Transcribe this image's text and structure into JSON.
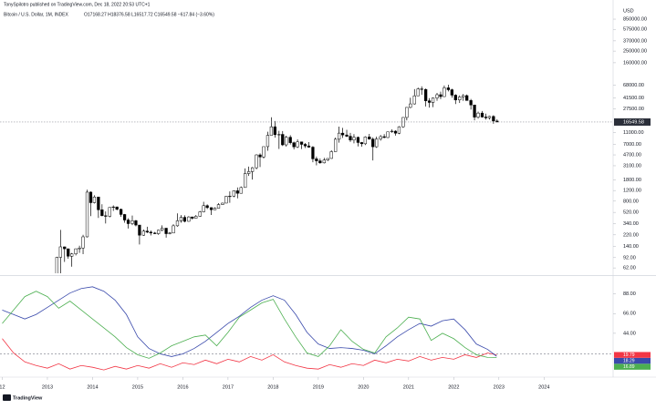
{
  "chart_data": [
    {
      "type": "candlestick",
      "source": "TonySpilotro published on TradingView.com, Dec 18, 2022 20:53 UTC+1",
      "title": "Bitcoin / U.S. Dollar, 1M, INDEX",
      "subtitle": "O17168.27 H18376.58 L16517.72 C16549.58 −617.84 (−3.60%)",
      "currency": "USD",
      "log_scale": true,
      "up_color": "#ffffff",
      "down_color": "#000000",
      "last_price_color": "#2a2e39",
      "xlim": [
        2011.95,
        2025.53
      ],
      "ylim": [
        50.5,
        1086000
      ],
      "yticks": [
        {
          "value": 850000,
          "label": "850000.00"
        },
        {
          "value": 575000,
          "label": "575000.00"
        },
        {
          "value": 370000,
          "label": "370000.00"
        },
        {
          "value": 250000,
          "label": "250000.00"
        },
        {
          "value": 160000,
          "label": "160000.00"
        },
        {
          "value": 68000,
          "label": "68000.00"
        },
        {
          "value": 41500,
          "label": "41500.00"
        },
        {
          "value": 27500,
          "label": "27500.00"
        },
        {
          "value": 11000,
          "label": "11000.00"
        },
        {
          "value": 7000,
          "label": "7000.00"
        },
        {
          "value": 4700,
          "label": "4700.00"
        },
        {
          "value": 3100,
          "label": "3100.00"
        },
        {
          "value": 1800,
          "label": "1800.00"
        },
        {
          "value": 1200,
          "label": "1200.00"
        },
        {
          "value": 800,
          "label": "800.00"
        },
        {
          "value": 520,
          "label": "520.00"
        },
        {
          "value": 340,
          "label": "340.00"
        },
        {
          "value": 220,
          "label": "220.00"
        },
        {
          "value": 140,
          "label": "140.00"
        },
        {
          "value": 92,
          "label": "92.00"
        },
        {
          "value": 62,
          "label": "62.00"
        }
      ],
      "x": [
        2013.04,
        2013.13,
        2013.21,
        2013.29,
        2013.38,
        2013.46,
        2013.54,
        2013.63,
        2013.71,
        2013.79,
        2013.88,
        2013.96,
        2014.04,
        2014.13,
        2014.21,
        2014.29,
        2014.38,
        2014.46,
        2014.54,
        2014.63,
        2014.71,
        2014.79,
        2014.88,
        2014.96,
        2015.04,
        2015.13,
        2015.21,
        2015.29,
        2015.38,
        2015.46,
        2015.54,
        2015.63,
        2015.71,
        2015.79,
        2015.88,
        2015.96,
        2016.04,
        2016.13,
        2016.21,
        2016.29,
        2016.38,
        2016.46,
        2016.54,
        2016.63,
        2016.71,
        2016.79,
        2016.88,
        2016.96,
        2017.04,
        2017.13,
        2017.21,
        2017.29,
        2017.38,
        2017.46,
        2017.54,
        2017.63,
        2017.71,
        2017.79,
        2017.88,
        2017.96,
        2018.04,
        2018.13,
        2018.21,
        2018.29,
        2018.38,
        2018.46,
        2018.54,
        2018.63,
        2018.71,
        2018.79,
        2018.88,
        2018.96,
        2019.04,
        2019.13,
        2019.21,
        2019.29,
        2019.38,
        2019.46,
        2019.54,
        2019.63,
        2019.71,
        2019.79,
        2019.88,
        2019.96,
        2020.04,
        2020.13,
        2020.21,
        2020.29,
        2020.38,
        2020.46,
        2020.54,
        2020.63,
        2020.71,
        2020.79,
        2020.88,
        2020.96,
        2021.04,
        2021.13,
        2021.21,
        2021.29,
        2021.38,
        2021.46,
        2021.54,
        2021.63,
        2021.71,
        2021.79,
        2021.88,
        2021.96,
        2022.04,
        2022.13,
        2022.21,
        2022.29,
        2022.38,
        2022.46,
        2022.54,
        2022.63,
        2022.71,
        2022.79,
        2022.88,
        2022.96
      ],
      "open": [
        13.3,
        20.4,
        33.4,
        93,
        139,
        129,
        97,
        106,
        129,
        133,
        204,
        1129,
        754,
        938,
        574,
        457,
        447,
        630,
        641,
        585,
        480,
        388,
        338,
        378,
        320,
        217,
        254,
        244,
        236,
        230,
        263,
        284,
        230,
        236,
        311,
        377,
        430,
        369,
        437,
        416,
        448,
        531,
        673,
        624,
        575,
        609,
        701,
        742,
        963,
        970,
        1190,
        1080,
        1348,
        2300,
        2480,
        2875,
        4700,
        4340,
        6450,
        9950,
        13800,
        10200,
        10300,
        6900,
        9240,
        7500,
        6390,
        7730,
        7030,
        6630,
        6320,
        4040,
        3740,
        3460,
        3850,
        4100,
        5320,
        8560,
        10820,
        10080,
        9590,
        8290,
        9200,
        7550,
        7190,
        9350,
        8600,
        6410,
        8630,
        9450,
        9140,
        11350,
        11650,
        10780,
        13800,
        19700,
        28950,
        33100,
        45150,
        58800,
        57700,
        37300,
        35000,
        41500,
        47100,
        43800,
        61300,
        57000,
        46300,
        38500,
        43200,
        45500,
        37700,
        31800,
        19950,
        23300,
        20050,
        19430,
        20500,
        17168.27
      ],
      "high": [
        20.4,
        33.4,
        95,
        266,
        140,
        130,
        110,
        130,
        145,
        220,
        1240,
        1163,
        1000,
        940,
        710,
        540,
        630,
        680,
        650,
        600,
        490,
        415,
        460,
        390,
        320,
        270,
        300,
        260,
        246,
        267,
        316,
        286,
        245,
        330,
        500,
        468,
        465,
        450,
        440,
        470,
        550,
        780,
        705,
        630,
        630,
        740,
        755,
        980,
        1160,
        1210,
        1350,
        1400,
        2800,
        3000,
        2950,
        4800,
        4980,
        6450,
        11400,
        19800,
        17200,
        11800,
        11700,
        9800,
        9990,
        7800,
        8500,
        7750,
        7400,
        7680,
        6580,
        4400,
        4100,
        4200,
        4100,
        5600,
        9100,
        13900,
        13200,
        12300,
        10900,
        10400,
        9500,
        7700,
        9600,
        10500,
        9200,
        9470,
        10080,
        10400,
        11450,
        12470,
        12080,
        14100,
        19900,
        29300,
        41950,
        58300,
        61800,
        64900,
        59600,
        41300,
        42400,
        50500,
        52900,
        67000,
        69000,
        59100,
        47900,
        45800,
        48200,
        47400,
        40000,
        31900,
        24700,
        25200,
        22800,
        20990,
        21480,
        18376.58
      ],
      "low": [
        13.3,
        19.1,
        33,
        50,
        78,
        88,
        65,
        100,
        110,
        105,
        199,
        450,
        730,
        420,
        450,
        340,
        430,
        550,
        560,
        440,
        350,
        280,
        320,
        305,
        152,
        212,
        235,
        215,
        227,
        220,
        252,
        198,
        224,
        235,
        300,
        350,
        355,
        365,
        395,
        412,
        440,
        520,
        590,
        470,
        570,
        606,
        690,
        737,
        750,
        930,
        890,
        1070,
        1350,
        2100,
        1830,
        2700,
        2950,
        4100,
        5500,
        11000,
        9100,
        5900,
        6600,
        6450,
        7000,
        5800,
        6100,
        5880,
        6100,
        6200,
        3550,
        3150,
        3350,
        3390,
        3700,
        4050,
        5300,
        7500,
        9000,
        9300,
        7700,
        7300,
        6500,
        6430,
        6850,
        8450,
        3800,
        6150,
        8100,
        8900,
        8950,
        10950,
        9850,
        10400,
        13200,
        17600,
        28100,
        32300,
        44950,
        47000,
        30000,
        28800,
        29300,
        37300,
        39600,
        43300,
        53300,
        42000,
        32900,
        34300,
        37200,
        37700,
        26700,
        17600,
        18800,
        19600,
        18150,
        18200,
        15480,
        16517.72
      ],
      "close": [
        20.4,
        33.4,
        93,
        139,
        129,
        97,
        106,
        129,
        133,
        204,
        1129,
        754,
        938,
        574,
        457,
        447,
        630,
        641,
        585,
        480,
        388,
        338,
        378,
        320,
        217,
        254,
        244,
        236,
        230,
        263,
        284,
        230,
        236,
        311,
        377,
        430,
        369,
        437,
        416,
        448,
        531,
        673,
        624,
        575,
        609,
        701,
        742,
        963,
        970,
        1190,
        1080,
        1348,
        2300,
        2480,
        2875,
        4700,
        4340,
        6450,
        9950,
        13800,
        10200,
        10300,
        6900,
        9240,
        7500,
        6390,
        7730,
        7030,
        6630,
        6320,
        4040,
        3740,
        3460,
        3850,
        4100,
        5320,
        8560,
        10820,
        10080,
        9590,
        8290,
        9200,
        7550,
        7190,
        9350,
        8600,
        6410,
        8630,
        9450,
        9140,
        11350,
        11650,
        10780,
        13800,
        19700,
        28950,
        33100,
        45150,
        58800,
        57700,
        37300,
        35000,
        41500,
        47100,
        43800,
        61300,
        57000,
        46300,
        38500,
        43200,
        45500,
        37700,
        31800,
        19950,
        23300,
        20050,
        19430,
        20500,
        17168.27,
        16549.58
      ]
    },
    {
      "type": "line",
      "watermark": "TradingView",
      "xlim": [
        2011.95,
        2025.53
      ],
      "xticks": [
        {
          "value": 2012,
          "label": "12"
        },
        2013,
        2014,
        2015,
        2016,
        2017,
        2018,
        2019,
        2020,
        2021,
        2022,
        2023,
        2024
      ],
      "ylim": [
        -5,
        106
      ],
      "yticks": [
        {
          "value": 88,
          "label": "88.00"
        },
        {
          "value": 66,
          "label": "66.00"
        },
        {
          "value": 44,
          "label": "44.00"
        }
      ],
      "reference_line": 21,
      "x": [
        2012,
        2012.25,
        2012.5,
        2012.75,
        2013,
        2013.25,
        2013.5,
        2013.75,
        2014,
        2014.25,
        2014.5,
        2014.75,
        2015,
        2015.25,
        2015.5,
        2015.75,
        2016,
        2016.25,
        2016.5,
        2016.75,
        2017,
        2017.25,
        2017.5,
        2017.75,
        2018,
        2018.25,
        2018.5,
        2018.75,
        2019,
        2019.25,
        2019.5,
        2019.75,
        2020,
        2020.25,
        2020.5,
        2020.75,
        2021,
        2021.25,
        2021.5,
        2021.75,
        2022,
        2022.25,
        2022.5,
        2022.75,
        2022.95
      ],
      "series": [
        {
          "color": "#f23645",
          "values": [
            38,
            22,
            12,
            8,
            5,
            10,
            4,
            8,
            6,
            3,
            7,
            4,
            8,
            5,
            10,
            6,
            11,
            9,
            14,
            10,
            15,
            12,
            18,
            14,
            20,
            12,
            8,
            5,
            4,
            9,
            6,
            10,
            8,
            14,
            11,
            15,
            13,
            18,
            14,
            17,
            15,
            20,
            17,
            22,
            19.79
          ]
        },
        {
          "color": "#3949ab",
          "values": [
            70,
            65,
            60,
            65,
            73,
            81,
            89,
            94,
            96,
            91,
            81,
            65,
            40,
            27,
            21,
            18,
            21,
            27,
            35,
            45,
            55,
            63,
            73,
            81,
            86,
            81,
            65,
            45,
            32,
            27,
            28,
            27,
            25,
            21,
            30,
            40,
            48,
            55,
            52,
            58,
            60,
            48,
            32,
            26,
            18.29
          ]
        },
        {
          "color": "#4caf50",
          "values": [
            55,
            70,
            85,
            91,
            85,
            72,
            80,
            70,
            60,
            50,
            40,
            28,
            20,
            16,
            22,
            30,
            35,
            40,
            42,
            30,
            45,
            62,
            70,
            78,
            82,
            60,
            40,
            22,
            18,
            30,
            48,
            35,
            26,
            22,
            40,
            50,
            62,
            60,
            36,
            44,
            38,
            28,
            20,
            17,
            16.89
          ]
        }
      ]
    }
  ]
}
